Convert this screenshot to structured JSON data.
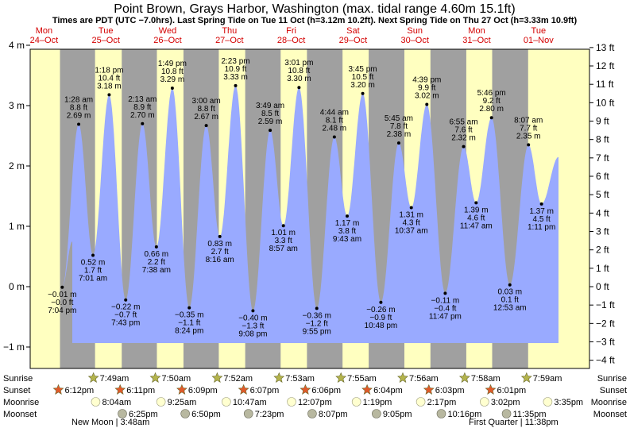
{
  "chart_data": {
    "type": "area",
    "title": "Point Brown, Grays Harbor, Washington (max. tidal range 4.60m 15.1ft)",
    "subtitle": "Times are PDT (UTC −7.0hrs). Last Spring Tide on Tue 11 Oct (h=3.12m 10.2ft). Next Spring Tide on Thu 27 Oct (h=3.33m 10.9ft)",
    "days": [
      {
        "name": "Mon",
        "date": "24–Oct"
      },
      {
        "name": "Tue",
        "date": "25–Oct"
      },
      {
        "name": "Wed",
        "date": "26–Oct"
      },
      {
        "name": "Thu",
        "date": "27–Oct"
      },
      {
        "name": "Fri",
        "date": "28–Oct"
      },
      {
        "name": "Sat",
        "date": "29–Oct"
      },
      {
        "name": "Sun",
        "date": "30–Oct"
      },
      {
        "name": "Mon",
        "date": "31–Oct"
      },
      {
        "name": "Tue",
        "date": "01–Nov"
      }
    ],
    "ylim_m": [
      -1.3,
      4.2
    ],
    "y_ticks_m": [
      -1,
      0,
      1,
      2,
      3,
      4
    ],
    "y_ticks_m_labels": [
      "−1 m",
      "0 m",
      "1 m",
      "2 m",
      "3 m",
      "4 m"
    ],
    "y_ticks_ft": [
      -4,
      -3,
      -2,
      -1,
      0,
      1,
      2,
      3,
      4,
      5,
      6,
      7,
      8,
      9,
      10,
      11,
      12,
      13
    ],
    "y_ticks_ft_labels": [
      "−4 ft",
      "−3 ft",
      "−2 ft",
      "−1 ft",
      "0 ft",
      "1 ft",
      "2 ft",
      "3 ft",
      "4 ft",
      "5 ft",
      "6 ft",
      "7 ft",
      "8 ft",
      "9 ft",
      "10 ft",
      "11 ft",
      "12 ft",
      "13 ft"
    ],
    "tides": [
      {
        "day": 0,
        "time": "7:04 pm",
        "h": -0.01,
        "m": "−0.01 m",
        "ft": "−0.0 ft",
        "pos": "below"
      },
      {
        "day": 1,
        "time": "1:28 am",
        "h": 2.69,
        "m": "2.69 m",
        "ft": "8.8 ft",
        "pos": "above"
      },
      {
        "day": 1,
        "time": "7:01 am",
        "h": 0.52,
        "m": "0.52 m",
        "ft": "1.7 ft",
        "pos": "below"
      },
      {
        "day": 1,
        "time": "1:18 pm",
        "h": 3.18,
        "m": "3.18 m",
        "ft": "10.4 ft",
        "pos": "above"
      },
      {
        "day": 1,
        "time": "7:43 pm",
        "h": -0.22,
        "m": "−0.22 m",
        "ft": "−0.7 ft",
        "pos": "below"
      },
      {
        "day": 2,
        "time": "2:13 am",
        "h": 2.7,
        "m": "2.70 m",
        "ft": "8.9 ft",
        "pos": "above"
      },
      {
        "day": 2,
        "time": "7:38 am",
        "h": 0.66,
        "m": "0.66 m",
        "ft": "2.2 ft",
        "pos": "below"
      },
      {
        "day": 2,
        "time": "1:49 pm",
        "h": 3.29,
        "m": "3.29 m",
        "ft": "10.8 ft",
        "pos": "above"
      },
      {
        "day": 2,
        "time": "8:24 pm",
        "h": -0.35,
        "m": "−0.35 m",
        "ft": "−1.1 ft",
        "pos": "below"
      },
      {
        "day": 3,
        "time": "3:00 am",
        "h": 2.67,
        "m": "2.67 m",
        "ft": "8.8 ft",
        "pos": "above"
      },
      {
        "day": 3,
        "time": "8:16 am",
        "h": 0.83,
        "m": "0.83 m",
        "ft": "2.7 ft",
        "pos": "below"
      },
      {
        "day": 3,
        "time": "2:23 pm",
        "h": 3.33,
        "m": "3.33 m",
        "ft": "10.9 ft",
        "pos": "above"
      },
      {
        "day": 3,
        "time": "9:08 pm",
        "h": -0.4,
        "m": "−0.40 m",
        "ft": "−1.3 ft",
        "pos": "below"
      },
      {
        "day": 4,
        "time": "3:49 am",
        "h": 2.59,
        "m": "2.59 m",
        "ft": "8.5 ft",
        "pos": "above"
      },
      {
        "day": 4,
        "time": "8:57 am",
        "h": 1.01,
        "m": "1.01 m",
        "ft": "3.3 ft",
        "pos": "below"
      },
      {
        "day": 4,
        "time": "3:01 pm",
        "h": 3.3,
        "m": "3.30 m",
        "ft": "10.8 ft",
        "pos": "above"
      },
      {
        "day": 4,
        "time": "9:55 pm",
        "h": -0.36,
        "m": "−0.36 m",
        "ft": "−1.2 ft",
        "pos": "below"
      },
      {
        "day": 5,
        "time": "4:44 am",
        "h": 2.48,
        "m": "2.48 m",
        "ft": "8.1 ft",
        "pos": "above"
      },
      {
        "day": 5,
        "time": "9:43 am",
        "h": 1.17,
        "m": "1.17 m",
        "ft": "3.8 ft",
        "pos": "below"
      },
      {
        "day": 5,
        "time": "3:45 pm",
        "h": 3.2,
        "m": "3.20 m",
        "ft": "10.5 ft",
        "pos": "above"
      },
      {
        "day": 5,
        "time": "10:48 pm",
        "h": -0.26,
        "m": "−0.26 m",
        "ft": "−0.9 ft",
        "pos": "below"
      },
      {
        "day": 6,
        "time": "5:45 am",
        "h": 2.38,
        "m": "2.38 m",
        "ft": "7.8 ft",
        "pos": "above"
      },
      {
        "day": 6,
        "time": "10:37 am",
        "h": 1.31,
        "m": "1.31 m",
        "ft": "4.3 ft",
        "pos": "below"
      },
      {
        "day": 6,
        "time": "4:39 pm",
        "h": 3.02,
        "m": "3.02 m",
        "ft": "9.9 ft",
        "pos": "above"
      },
      {
        "day": 6,
        "time": "11:47 pm",
        "h": -0.11,
        "m": "−0.11 m",
        "ft": "−0.4 ft",
        "pos": "below"
      },
      {
        "day": 7,
        "time": "6:55 am",
        "h": 2.32,
        "m": "2.32 m",
        "ft": "7.6 ft",
        "pos": "above"
      },
      {
        "day": 7,
        "time": "11:47 am",
        "h": 1.39,
        "m": "1.39 m",
        "ft": "4.6 ft",
        "pos": "below"
      },
      {
        "day": 7,
        "time": "5:46 pm",
        "h": 2.8,
        "m": "2.80 m",
        "ft": "9.2 ft",
        "pos": "above"
      },
      {
        "day": 8,
        "time": "12:53 am",
        "h": 0.03,
        "m": "0.03 m",
        "ft": "0.1 ft",
        "pos": "below"
      },
      {
        "day": 8,
        "time": "8:07 am",
        "h": 2.35,
        "m": "2.35 m",
        "ft": "7.7 ft",
        "pos": "above"
      },
      {
        "day": 8,
        "time": "1:11 pm",
        "h": 1.37,
        "m": "1.37 m",
        "ft": "4.5 ft",
        "pos": "below"
      }
    ],
    "sunrise": [
      {
        "day": 1,
        "time": "7:49am"
      },
      {
        "day": 2,
        "time": "7:50am"
      },
      {
        "day": 3,
        "time": "7:52am"
      },
      {
        "day": 4,
        "time": "7:53am"
      },
      {
        "day": 5,
        "time": "7:55am"
      },
      {
        "day": 6,
        "time": "7:56am"
      },
      {
        "day": 7,
        "time": "7:58am"
      },
      {
        "day": 8,
        "time": "7:59am"
      }
    ],
    "sunset": [
      {
        "day": 0,
        "time": "6:12pm"
      },
      {
        "day": 1,
        "time": "6:11pm"
      },
      {
        "day": 2,
        "time": "6:09pm"
      },
      {
        "day": 3,
        "time": "6:07pm"
      },
      {
        "day": 4,
        "time": "6:06pm"
      },
      {
        "day": 5,
        "time": "6:04pm"
      },
      {
        "day": 6,
        "time": "6:03pm"
      },
      {
        "day": 7,
        "time": "6:01pm"
      }
    ],
    "moonrise": [
      {
        "day": 1,
        "time": "8:04am"
      },
      {
        "day": 2,
        "time": "9:25am"
      },
      {
        "day": 3,
        "time": "10:47am"
      },
      {
        "day": 4,
        "time": "12:07pm"
      },
      {
        "day": 5,
        "time": "1:19pm"
      },
      {
        "day": 6,
        "time": "2:17pm"
      },
      {
        "day": 7,
        "time": "3:02pm"
      },
      {
        "day": 8,
        "time": "3:35pm"
      }
    ],
    "moonset": [
      {
        "day": 1,
        "time": "6:25pm"
      },
      {
        "day": 2,
        "time": "6:50pm"
      },
      {
        "day": 3,
        "time": "7:23pm"
      },
      {
        "day": 4,
        "time": "8:07pm"
      },
      {
        "day": 5,
        "time": "9:05pm"
      },
      {
        "day": 6,
        "time": "10:16pm"
      },
      {
        "day": 7,
        "time": "11:35pm"
      }
    ],
    "row_labels": [
      "Sunrise",
      "Sunset",
      "Moonrise",
      "Moonset"
    ],
    "moon_phases": [
      {
        "label": "New Moon | 3:48am",
        "day": 0
      },
      {
        "label": "First Quarter | 11:38pm",
        "day": 6
      }
    ],
    "colors": {
      "water": "#99aaff",
      "day_bg": "#ffffc0",
      "night_bg": "#a0a0a0",
      "day_text": "#d40000",
      "sun_icon": "#b4b44c",
      "sunset_icon": "#e05a2a",
      "moonrise_icon": "#ffffd0",
      "moonset_icon": "#b8b8a0"
    }
  }
}
